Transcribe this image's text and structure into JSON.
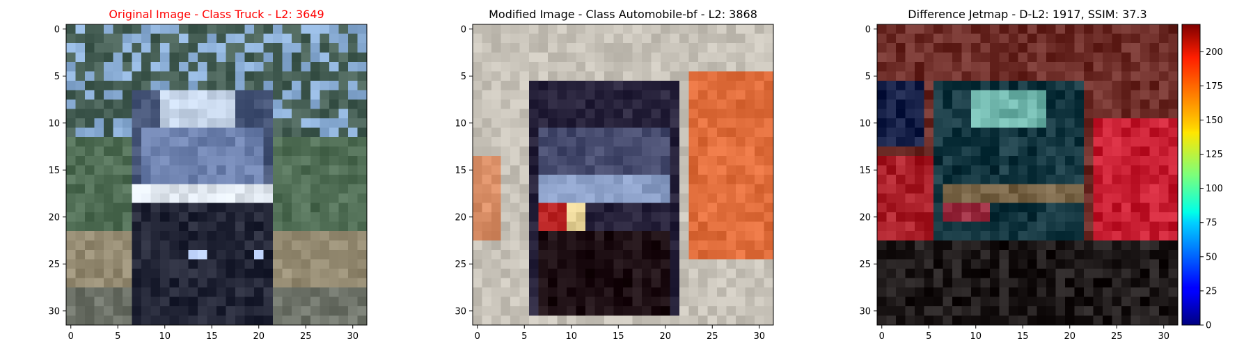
{
  "chart_data": [
    {
      "type": "heatmap",
      "title": "Original Image - Class Truck - L2: 3649",
      "title_color": "#ff0000",
      "x_ticks": [
        0,
        5,
        10,
        15,
        20,
        25,
        30
      ],
      "y_ticks": [
        0,
        5,
        10,
        15,
        20,
        25,
        30
      ],
      "xlim": [
        -0.5,
        31.5
      ],
      "ylim": [
        31.5,
        -0.5
      ],
      "image_size": [
        32,
        32
      ],
      "content": "pixelated photo of a dark truck front on a road with trees"
    },
    {
      "type": "heatmap",
      "title": "Modified Image - Class Automobile-bf - L2: 3868",
      "title_color": "#000000",
      "x_ticks": [
        0,
        5,
        10,
        15,
        20,
        25,
        30
      ],
      "y_ticks": [
        0,
        5,
        10,
        15,
        20,
        25,
        30
      ],
      "xlim": [
        -0.5,
        31.5
      ],
      "ylim": [
        31.5,
        -0.5
      ],
      "image_size": [
        32,
        32
      ],
      "content": "pixelated dark vehicle front on light grey background with orange region at right"
    },
    {
      "type": "heatmap",
      "title": "Difference Jetmap - D-L2: 1917, SSIM: 37.3",
      "title_color": "#000000",
      "x_ticks": [
        0,
        5,
        10,
        15,
        20,
        25,
        30
      ],
      "y_ticks": [
        0,
        5,
        10,
        15,
        20,
        25,
        30
      ],
      "xlim": [
        -0.5,
        31.5
      ],
      "ylim": [
        31.5,
        -0.5
      ],
      "image_size": [
        32,
        32
      ],
      "colorbar": {
        "colormap": "jet",
        "range": [
          0,
          220
        ],
        "ticks": [
          0,
          25,
          50,
          75,
          100,
          125,
          150,
          175,
          200
        ]
      }
    }
  ]
}
